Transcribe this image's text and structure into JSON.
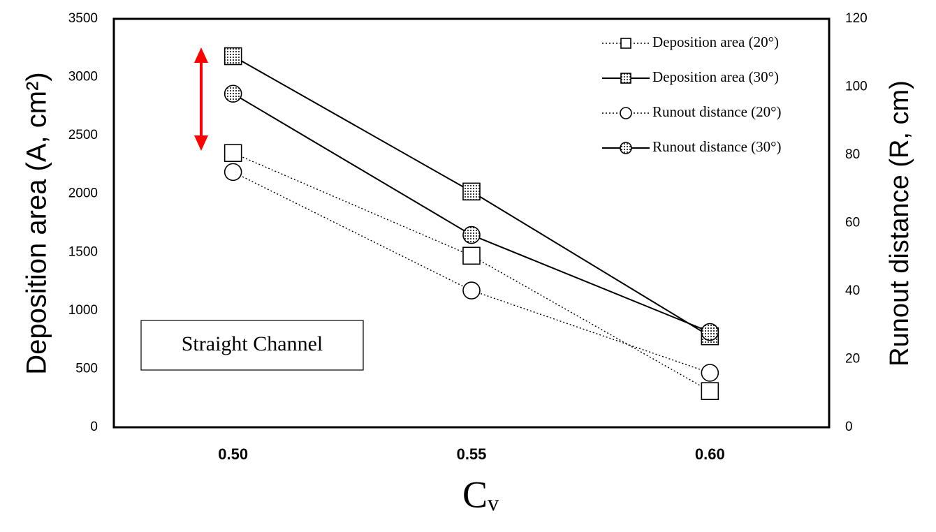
{
  "chart_data": {
    "type": "line",
    "categories": [
      "0.50",
      "0.55",
      "0.60"
    ],
    "x_label": "Cᵥ",
    "y_label": "Deposition area (A, cm²)",
    "y2_label": "Runout distance (R, cm)",
    "ylim": [
      0,
      3500
    ],
    "yticks": [
      0,
      500,
      1000,
      1500,
      2000,
      2500,
      3000,
      3500
    ],
    "y2lim": [
      0,
      120
    ],
    "y2ticks": [
      0,
      20,
      40,
      60,
      80,
      100,
      120
    ],
    "grid": false,
    "legend": "upper right",
    "annotation": "Straight Channel",
    "series": [
      {
        "name": "Deposition area (20°)",
        "color": "#000000",
        "line_style": "dotted",
        "marker": "square",
        "marker_fill": "none",
        "values": [
          2350,
          1470,
          310
        ]
      },
      {
        "name": "Deposition area (30°)",
        "color": "#000000",
        "line_style": "solid",
        "marker": "square",
        "marker_fill": "dotted",
        "values": [
          3180,
          2020,
          780
        ]
      },
      {
        "name": "Runout distance (20°)",
        "color": "#000000",
        "line_style": "dotted",
        "marker": "circle",
        "marker_fill": "none",
        "values": [
          75,
          40.2,
          16
        ],
        "axis": "y2"
      },
      {
        "name": "Runout distance (30°)",
        "color": "#000000",
        "line_style": "solid",
        "marker": "circle",
        "marker_fill": "dotted",
        "values": [
          98,
          56.5,
          28
        ],
        "axis": "y2"
      }
    ]
  }
}
